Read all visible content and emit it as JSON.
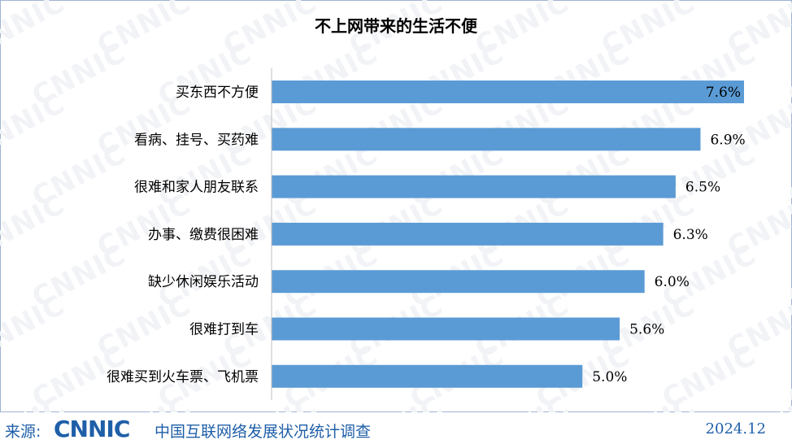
{
  "chart_data": {
    "type": "bar",
    "orientation": "horizontal",
    "title": "不上网带来的生活不便",
    "categories": [
      "买东西不方便",
      "看病、挂号、买药难",
      "很难和家人朋友联系",
      "办事、缴费很困难",
      "缺少休闲娱乐活动",
      "很难打到车",
      "很难买到火车票、飞机票"
    ],
    "values": [
      7.6,
      6.9,
      6.5,
      6.3,
      6.0,
      5.6,
      5.0
    ],
    "value_labels": [
      "7.6%",
      "6.9%",
      "6.5%",
      "6.3%",
      "6.0%",
      "5.6%",
      "5.0%"
    ],
    "unit": "%",
    "xlim": [
      0,
      7.6
    ],
    "grid": false,
    "legend": "none",
    "bar_color": "#5b9bd5"
  },
  "footer": {
    "source_label": "来源:",
    "logo_text": "CNNIC",
    "report_name": "中国互联网络发展状况统计调查",
    "date": "2024.12"
  },
  "watermark_text": "CNNIC",
  "colors": {
    "accent": "#1f5fa8",
    "border": "#9fb3d1"
  }
}
